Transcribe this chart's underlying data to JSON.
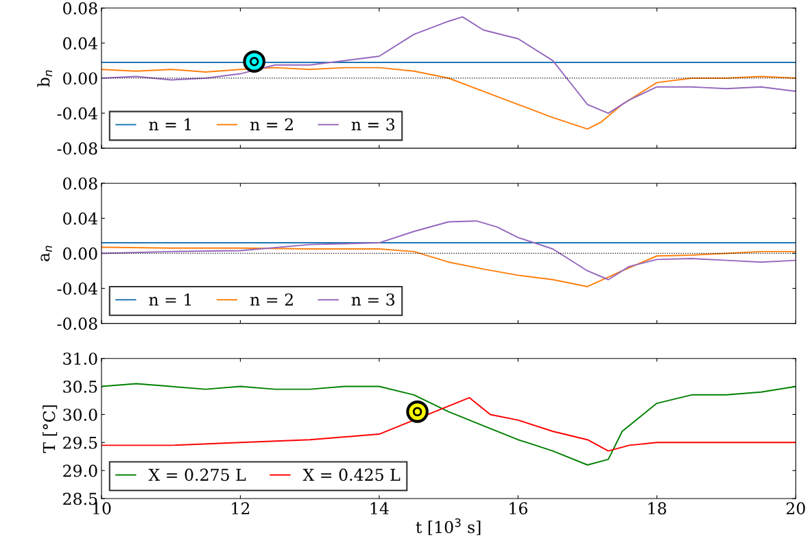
{
  "chart_data": [
    {
      "type": "line",
      "ylabel": "b$_{n}$",
      "xlim": [
        10,
        20
      ],
      "xticks": [
        10,
        12,
        14,
        16,
        18,
        20
      ],
      "ylim": [
        -0.08,
        0.08
      ],
      "yticks": [
        {
          "value": -0.08,
          "label": "-0.08"
        },
        {
          "value": -0.04,
          "label": "-0.04"
        },
        {
          "value": 0,
          "label": "0.00"
        },
        {
          "value": 0.04,
          "label": "0.04"
        },
        {
          "value": 0.08,
          "label": "0.08"
        }
      ],
      "tick_labels": "y",
      "grid": false,
      "legend": "bottom left",
      "marker": "none",
      "line_style": "solid",
      "ref_lines": [
        {
          "axis": "y",
          "value": 0,
          "color": "#000000",
          "line_style": "dotted"
        }
      ],
      "series": [
        {
          "name": "n = 1",
          "color": "#1f77b4",
          "x": [
            10,
            20
          ],
          "values": [
            0.018,
            0.018
          ]
        },
        {
          "name": "n = 2",
          "color": "#ff7f0e",
          "x": [
            10,
            10.5,
            11,
            11.5,
            12,
            12.5,
            13,
            13.5,
            14,
            14.5,
            15,
            15.5,
            16,
            16.5,
            17,
            17.2,
            17.5,
            18,
            18.5,
            19,
            19.5,
            20
          ],
          "values": [
            0.01,
            0.008,
            0.01,
            0.007,
            0.01,
            0.012,
            0.01,
            0.012,
            0.012,
            0.008,
            0.0,
            -0.015,
            -0.03,
            -0.045,
            -0.058,
            -0.05,
            -0.03,
            -0.005,
            0.0,
            0.0,
            0.002,
            0.0
          ]
        },
        {
          "name": "n = 3",
          "color": "#9467bd",
          "x": [
            10,
            10.5,
            11,
            11.5,
            12,
            12.5,
            13,
            13.5,
            14,
            14.5,
            15,
            15.2,
            15.5,
            16,
            16.5,
            16.8,
            17,
            17.3,
            17.6,
            18,
            18.5,
            19,
            19.5,
            20
          ],
          "values": [
            0.0,
            0.002,
            -0.002,
            0.0,
            0.005,
            0.015,
            0.015,
            0.02,
            0.025,
            0.05,
            0.065,
            0.07,
            0.055,
            0.045,
            0.02,
            -0.01,
            -0.03,
            -0.04,
            -0.025,
            -0.01,
            -0.01,
            -0.012,
            -0.01,
            -0.015
          ]
        },
        {
          "type": "scatter",
          "marker": "circle",
          "color": "#00ffff",
          "x": [
            12.2
          ],
          "values": [
            0.019
          ]
        }
      ]
    },
    {
      "type": "line",
      "ylabel": "a$_{n}$",
      "xlim": [
        10,
        20
      ],
      "xticks": [
        10,
        12,
        14,
        16,
        18,
        20
      ],
      "ylim": [
        -0.08,
        0.08
      ],
      "yticks": [
        {
          "value": -0.08,
          "label": "-0.08"
        },
        {
          "value": -0.04,
          "label": "-0.04"
        },
        {
          "value": 0,
          "label": "0.00"
        },
        {
          "value": 0.04,
          "label": "0.04"
        },
        {
          "value": 0.08,
          "label": "0.08"
        }
      ],
      "tick_labels": "y",
      "grid": false,
      "legend": "bottom left",
      "marker": "none",
      "line_style": "solid",
      "ref_lines": [
        {
          "axis": "y",
          "value": 0,
          "color": "#000000",
          "line_style": "dotted"
        }
      ],
      "series": [
        {
          "name": "n = 1",
          "color": "#1f77b4",
          "x": [
            10,
            20
          ],
          "values": [
            0.012,
            0.012
          ]
        },
        {
          "name": "n = 2",
          "color": "#ff7f0e",
          "x": [
            10,
            11,
            12,
            13,
            14,
            14.5,
            15,
            15.5,
            16,
            16.5,
            17,
            17.5,
            18,
            18.5,
            19,
            19.5,
            20
          ],
          "values": [
            0.007,
            0.006,
            0.006,
            0.005,
            0.005,
            0.002,
            -0.01,
            -0.018,
            -0.025,
            -0.03,
            -0.038,
            -0.02,
            -0.003,
            -0.002,
            0.0,
            0.002,
            0.002
          ]
        },
        {
          "name": "n = 3",
          "color": "#9467bd",
          "x": [
            10,
            11,
            12,
            13,
            14,
            14.5,
            15,
            15.4,
            15.7,
            16,
            16.5,
            17,
            17.3,
            17.6,
            18,
            18.5,
            19,
            19.5,
            20
          ],
          "values": [
            0.0,
            0.002,
            0.003,
            0.01,
            0.012,
            0.025,
            0.036,
            0.037,
            0.03,
            0.018,
            0.005,
            -0.02,
            -0.03,
            -0.015,
            -0.007,
            -0.006,
            -0.008,
            -0.01,
            -0.008
          ]
        }
      ]
    },
    {
      "type": "line",
      "ylabel": "T [°C]",
      "xlabel": "t [10$^{3}$ s]",
      "xlim": [
        10,
        20
      ],
      "xticks": [
        10,
        12,
        14,
        16,
        18,
        20
      ],
      "ylim": [
        28.5,
        31.0
      ],
      "yticks": [
        {
          "value": 28.5,
          "label": "28.5"
        },
        {
          "value": 29.0,
          "label": "29.0"
        },
        {
          "value": 29.5,
          "label": "29.5"
        },
        {
          "value": 30.0,
          "label": "30.0"
        },
        {
          "value": 30.5,
          "label": "30.5"
        },
        {
          "value": 31.0,
          "label": "31.0"
        }
      ],
      "grid": false,
      "legend": "bottom left",
      "marker": "none",
      "line_style": "solid",
      "series": [
        {
          "name": "X = 0.275 L",
          "color": "#008000",
          "x": [
            10,
            10.5,
            11,
            11.5,
            12,
            12.5,
            13,
            13.5,
            14,
            14.5,
            15,
            15.5,
            16,
            16.5,
            17,
            17.3,
            17.5,
            18,
            18.5,
            19,
            19.5,
            20
          ],
          "values": [
            30.5,
            30.55,
            30.5,
            30.45,
            30.5,
            30.45,
            30.45,
            30.5,
            30.5,
            30.35,
            30.05,
            29.8,
            29.55,
            29.35,
            29.1,
            29.2,
            29.7,
            30.2,
            30.35,
            30.35,
            30.4,
            30.5
          ]
        },
        {
          "name": "X = 0.425 L",
          "color": "#ff0000",
          "x": [
            10,
            11,
            12,
            13,
            14,
            14.5,
            15,
            15.3,
            15.6,
            16,
            16.5,
            17,
            17.3,
            17.6,
            18,
            19,
            20
          ],
          "values": [
            29.45,
            29.45,
            29.5,
            29.55,
            29.65,
            29.9,
            30.15,
            30.3,
            30.0,
            29.9,
            29.7,
            29.55,
            29.35,
            29.45,
            29.5,
            29.5,
            29.5
          ]
        },
        {
          "type": "scatter",
          "marker": "circle",
          "color": "#ffff00",
          "x": [
            14.55
          ],
          "values": [
            30.05
          ]
        }
      ]
    }
  ]
}
